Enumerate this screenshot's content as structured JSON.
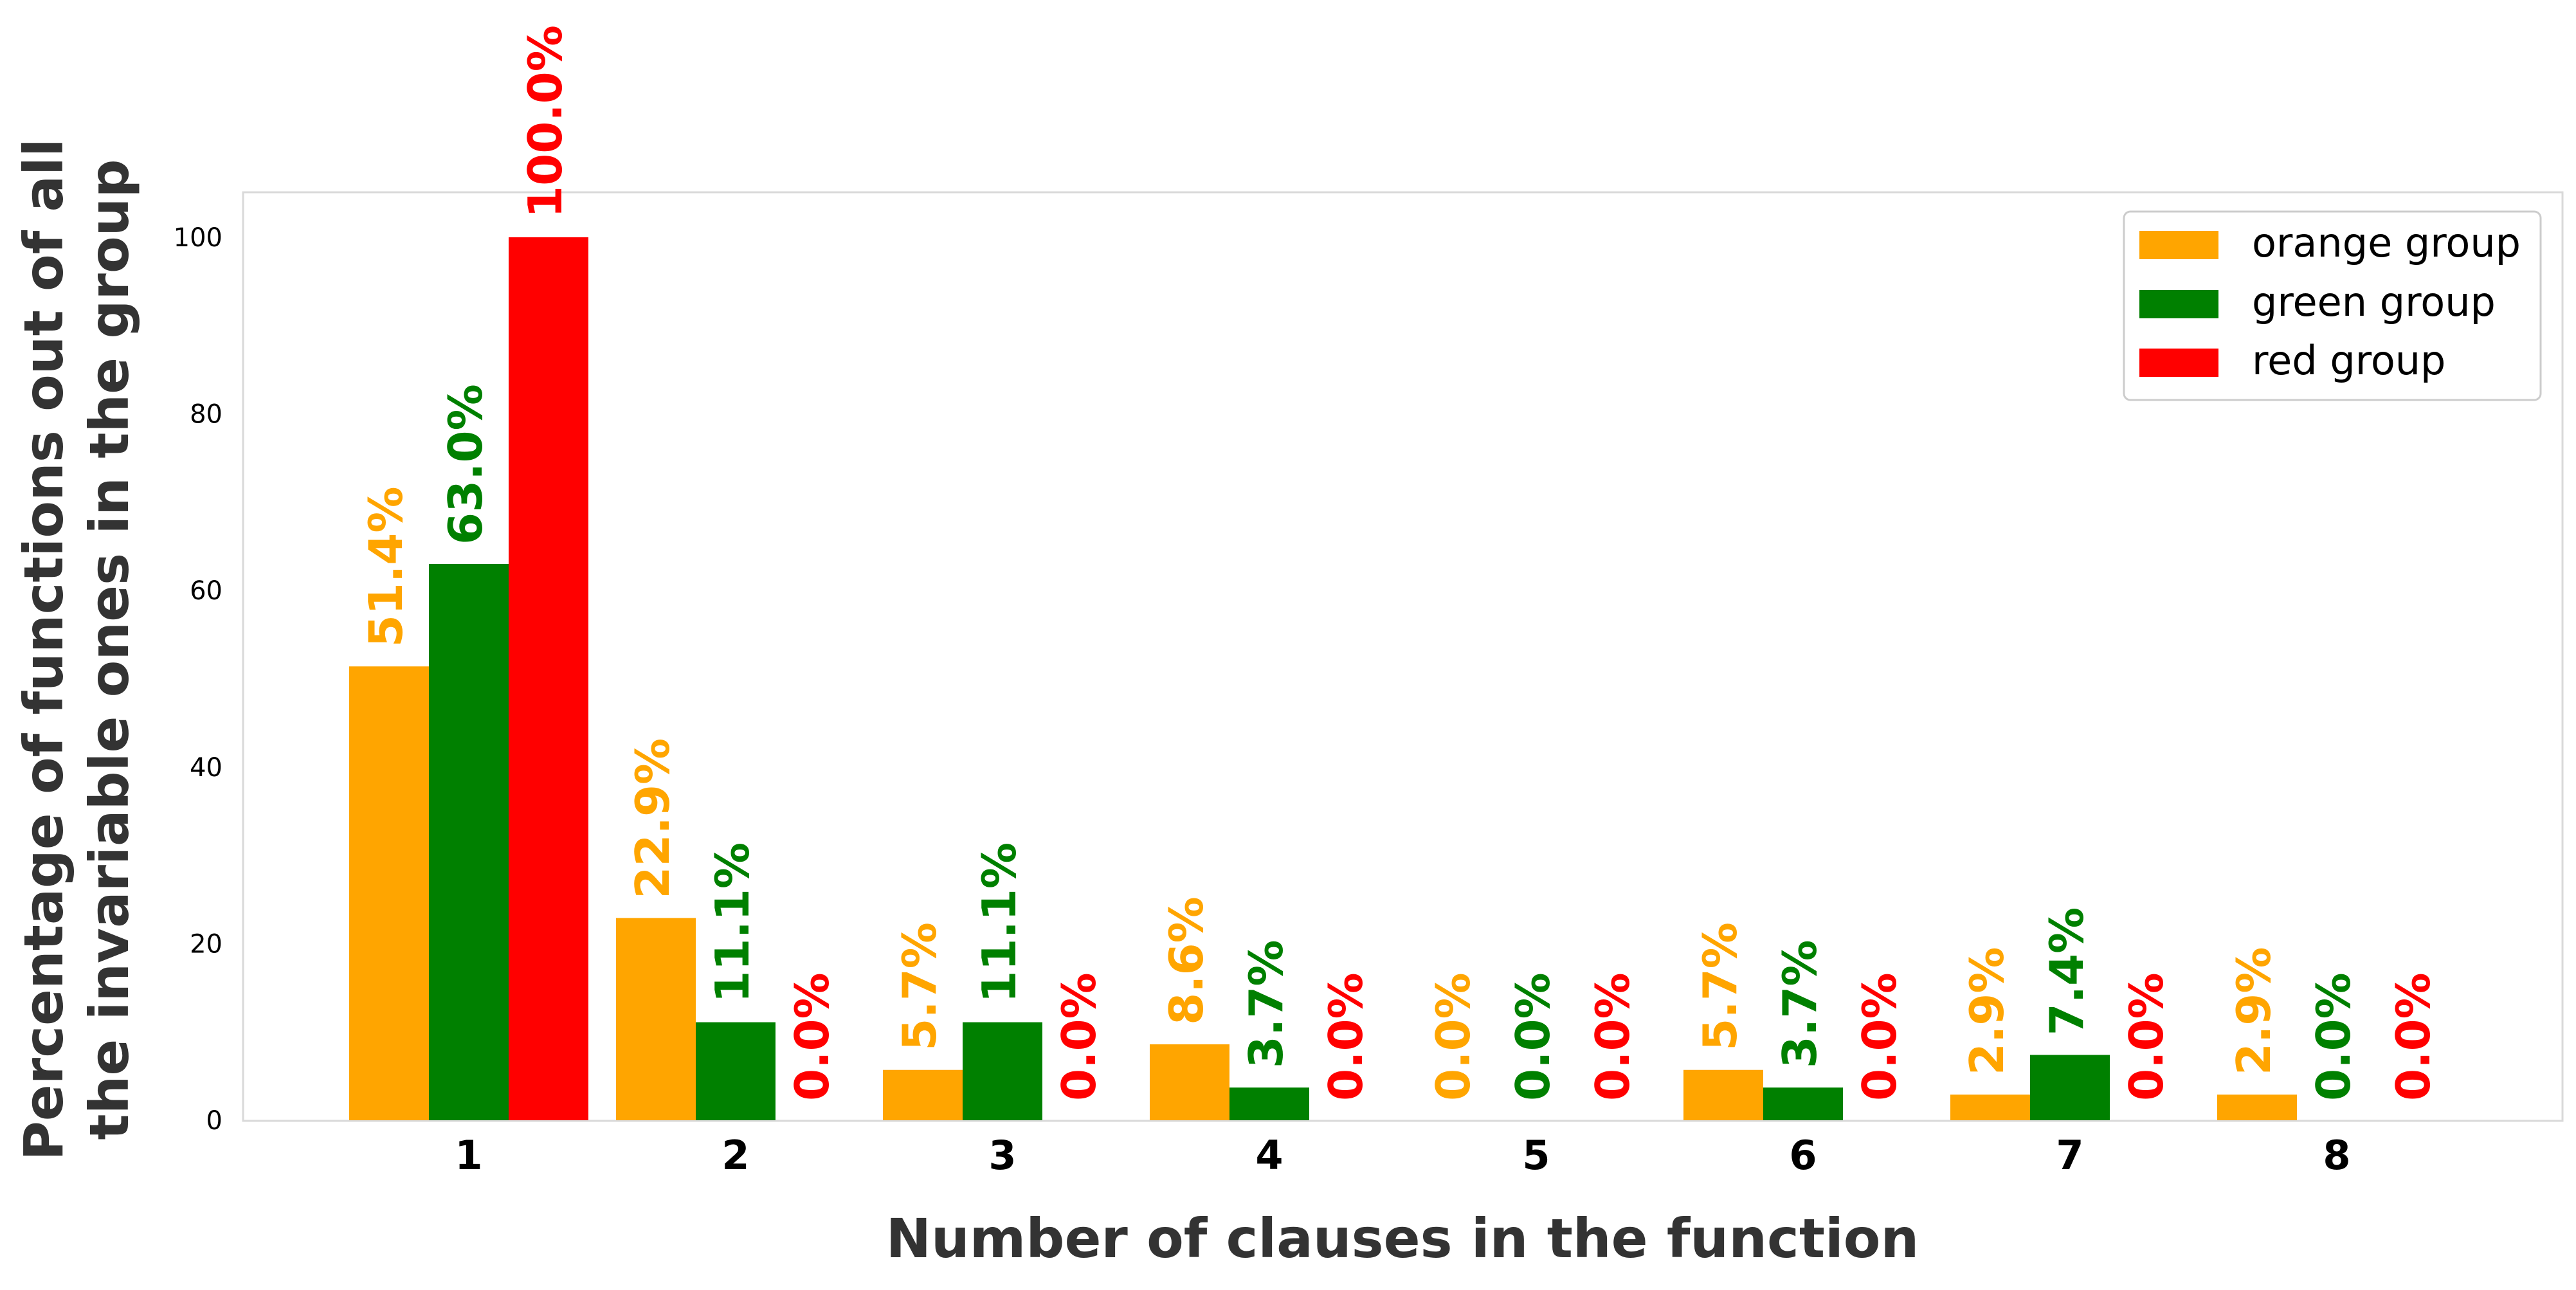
{
  "chart_data": {
    "type": "bar",
    "xlabel": "Number of clauses in the function",
    "ylabel_lines": [
      "Percentage of functions out of all",
      "the invariable ones in the group"
    ],
    "categories": [
      "1",
      "2",
      "3",
      "4",
      "5",
      "6",
      "7",
      "8"
    ],
    "ylim": [
      0,
      105
    ],
    "yticks": [
      "0",
      "20",
      "40",
      "60",
      "80",
      "100"
    ],
    "grid": false,
    "legend_position": "top-right",
    "series": [
      {
        "name": "orange group",
        "color": "#FFA500",
        "values": [
          51.4,
          22.9,
          5.7,
          8.6,
          0.0,
          5.7,
          2.9,
          2.9
        ],
        "labels": [
          "51.4%",
          "22.9%",
          "5.7%",
          "8.6%",
          "0.0%",
          "5.7%",
          "2.9%",
          "2.9%"
        ]
      },
      {
        "name": "green group",
        "color": "#008000",
        "values": [
          63.0,
          11.1,
          11.1,
          3.7,
          0.0,
          3.7,
          7.4,
          0.0
        ],
        "labels": [
          "63.0%",
          "11.1%",
          "11.1%",
          "3.7%",
          "0.0%",
          "3.7%",
          "7.4%",
          "0.0%"
        ]
      },
      {
        "name": "red group",
        "color": "#FF0000",
        "values": [
          100.0,
          0.0,
          0.0,
          0.0,
          0.0,
          0.0,
          0.0,
          0.0
        ],
        "labels": [
          "100.0%",
          "0.0%",
          "0.0%",
          "0.0%",
          "0.0%",
          "0.0%",
          "0.0%",
          "0.0%"
        ]
      }
    ]
  }
}
